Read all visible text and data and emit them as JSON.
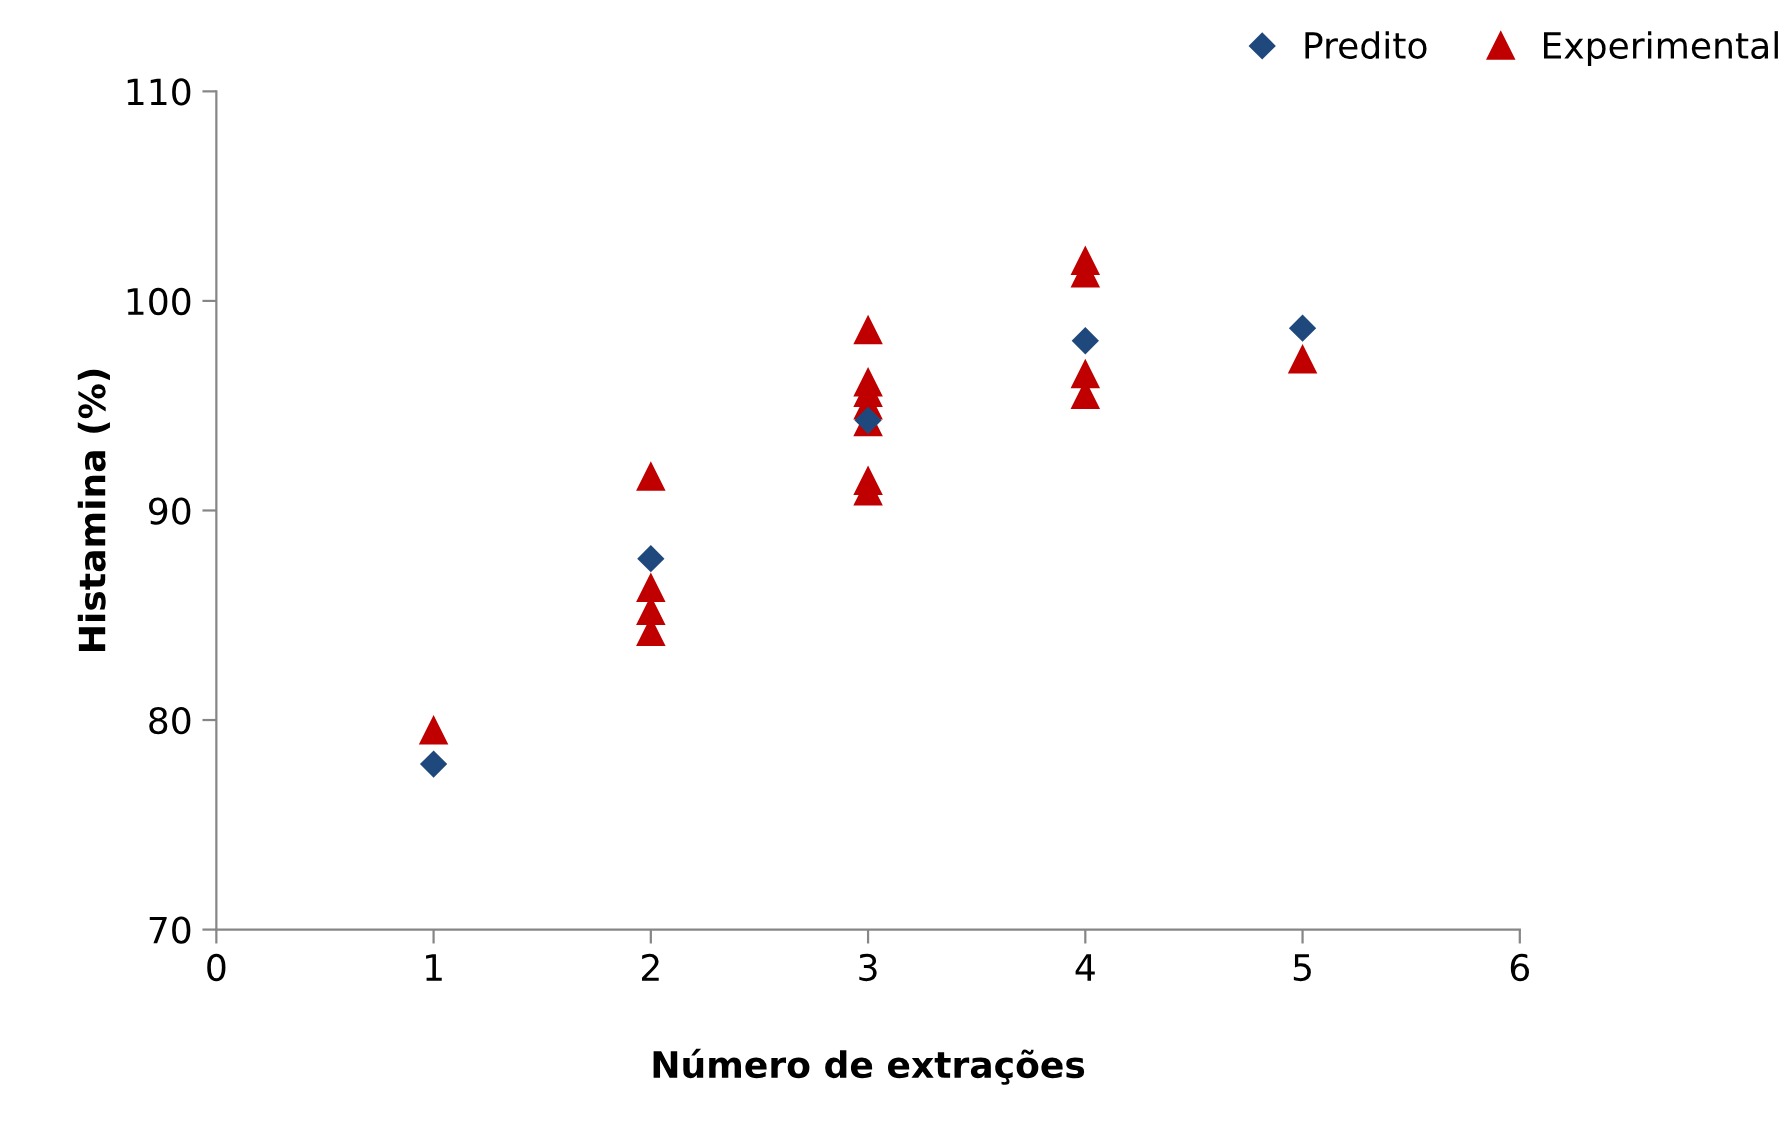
{
  "chart_data": {
    "type": "scatter",
    "xlabel": "Número de extrações",
    "ylabel": "Histamina (%)",
    "xlim": [
      0,
      6
    ],
    "xticks": [
      0,
      1,
      2,
      3,
      4,
      5,
      6
    ],
    "ylim": [
      70,
      110
    ],
    "yticks": [
      70,
      80,
      90,
      100,
      110
    ],
    "grid": false,
    "legend": "top right",
    "series": [
      {
        "name": "Predito",
        "color": "#1f497d",
        "marker": "diamond",
        "x": [
          1,
          2,
          3,
          4,
          5
        ],
        "values": [
          77.9,
          87.7,
          94.3,
          98.1,
          98.7
        ]
      },
      {
        "name": "Experimental",
        "color": "#c00000",
        "marker": "triangle",
        "x": [
          1,
          2,
          2,
          2,
          2,
          3,
          3,
          3,
          3,
          3,
          3,
          3,
          4,
          4,
          4,
          4,
          5
        ],
        "values": [
          79.5,
          91.6,
          86.3,
          85.2,
          84.2,
          98.6,
          96.1,
          95.6,
          95.0,
          94.2,
          91.4,
          90.9,
          101.9,
          101.3,
          96.5,
          95.5,
          97.2
        ]
      }
    ]
  }
}
